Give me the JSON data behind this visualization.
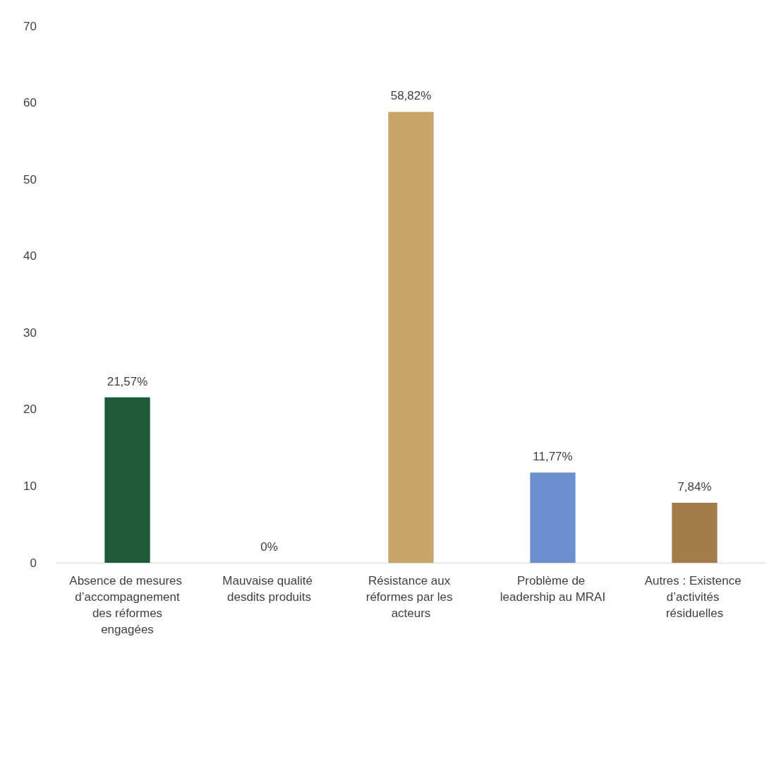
{
  "chart_data": {
    "type": "bar",
    "categories": [
      "Absence de mesures d’accompagnement des réformes engagées",
      "Mauvaise qualité desdits produits",
      "Résistance aux réformes par les acteurs",
      "Problème de leadership au MRAI",
      "Autres : Existence d’activités résiduelles"
    ],
    "values": [
      21.57,
      0,
      58.82,
      11.77,
      7.84
    ],
    "value_labels": [
      "21,57%",
      "0%",
      "58,82%",
      "11,77%",
      "7,84%"
    ],
    "colors": [
      "#1f5a36",
      "#8a8a8a",
      "#c8a56a",
      "#6c8fce",
      "#a47c4c"
    ],
    "ylim": [
      0,
      70
    ],
    "yticks": [
      0,
      10,
      20,
      30,
      40,
      50,
      60,
      70
    ]
  }
}
